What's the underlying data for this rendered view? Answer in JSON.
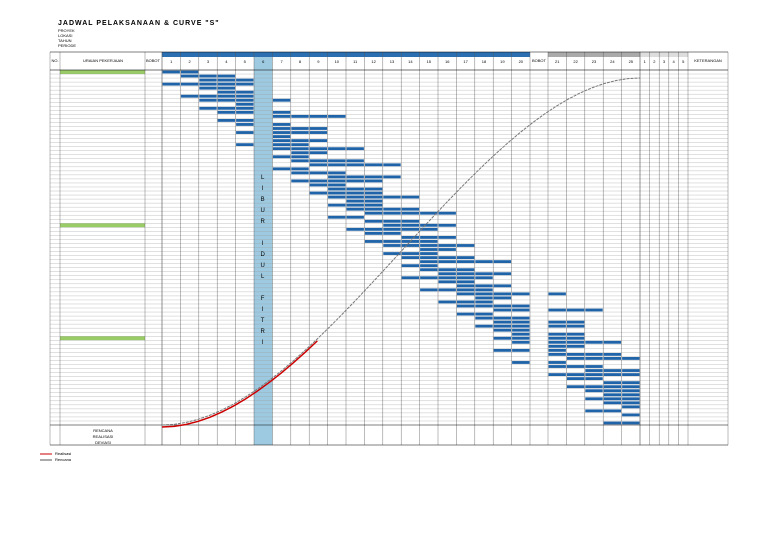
{
  "header": {
    "title": "JADWAL PELAKSANAAN & CURVE \"S\"",
    "info": [
      "PROYEK",
      "LOKASI",
      "TAHUN",
      "PERIODE"
    ]
  },
  "table": {
    "columns": {
      "no": "NO.",
      "uraian": "URAIAN PEKERJAAN",
      "bobot": "BOBOT",
      "keterangan": "KETERANGAN"
    },
    "weeks": [
      1,
      2,
      3,
      4,
      5,
      6,
      7,
      8,
      9,
      10,
      11,
      12,
      13,
      14,
      15,
      16,
      17,
      18,
      19,
      20
    ],
    "weeks2": [
      21,
      22,
      23,
      24,
      25
    ],
    "weeks3": [
      1,
      2,
      3,
      4,
      5
    ],
    "holiday": "LIBUR IDUL FITRI",
    "summary": [
      "RENCANA",
      "REALISASI",
      "DEVIASI"
    ]
  },
  "legend": [
    "Realisasi",
    "Rencana"
  ]
}
